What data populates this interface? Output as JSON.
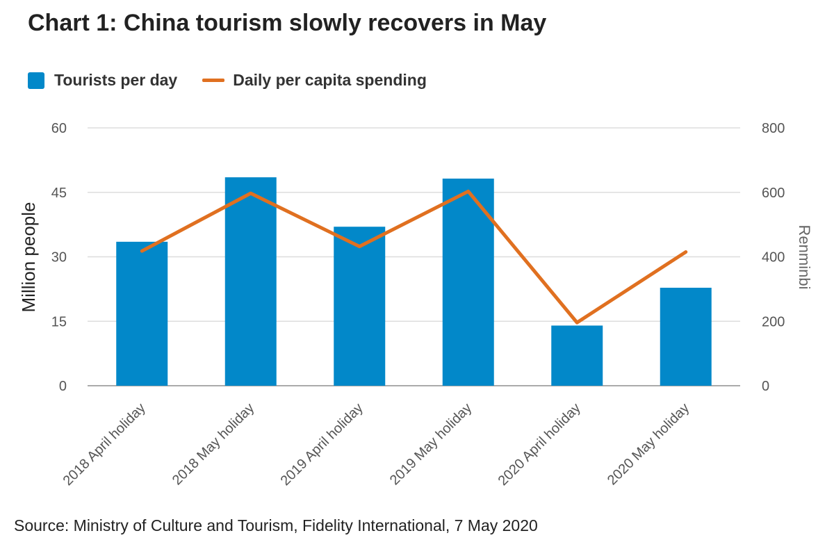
{
  "title": "Chart 1: China tourism slowly recovers in May",
  "source": "Source: Ministry of Culture and Tourism, Fidelity International, 7 May 2020",
  "colors": {
    "bar": "#0288C9",
    "line": "#E07020",
    "grid": "#DDDDDD",
    "axis": "#AAAAAA"
  },
  "chart_data": {
    "type": "bar",
    "title": "Chart 1: China tourism slowly recovers in May",
    "categories": [
      "2018 April holiday",
      "2018 May holiday",
      "2019 April holiday",
      "2019 May holiday",
      "2020 April holiday",
      "2020 May holiday"
    ],
    "series": [
      {
        "name": "Tourists per day",
        "type": "bar",
        "axis": "left",
        "values": [
          33.5,
          48.5,
          37,
          48.2,
          14,
          22.8
        ]
      },
      {
        "name": "Daily per capita spending",
        "type": "line",
        "axis": "right",
        "values": [
          418,
          597,
          432,
          603,
          196,
          415
        ]
      }
    ],
    "ylabel": "Million people",
    "ylabel_right": "Renminbi",
    "ylim": [
      0,
      60
    ],
    "ylim_right": [
      0,
      800
    ],
    "yticks": [
      "0",
      "15",
      "30",
      "45",
      "60"
    ],
    "yticks_right": [
      "0",
      "200",
      "400",
      "600",
      "800"
    ],
    "grid": true,
    "legend": "top-left"
  }
}
